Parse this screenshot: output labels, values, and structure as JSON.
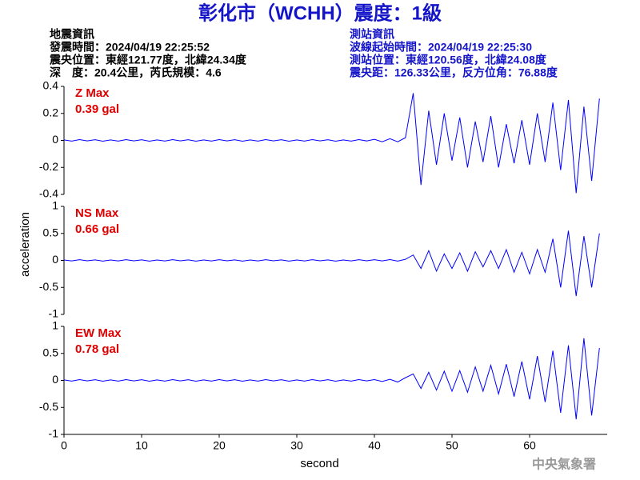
{
  "header": {
    "title": "彰化市（WCHH）震度：1級",
    "left_info": [
      "地震資訊",
      "發震時間：2024/04/19 22:25:52",
      "震央位置：東經121.77度，北緯24.34度",
      "深　度：20.4公里，芮氏規模：4.6"
    ],
    "right_info": [
      "測站資訊",
      "波線起始時間：2024/04/19 22:25:30",
      "測站位置：東經120.56度，北緯24.08度",
      "震央距：126.33公里，反方位角：76.88度"
    ],
    "watermark": "中央氣象署"
  },
  "chart_data": [
    {
      "type": "line",
      "annotations": [
        "Z Max",
        "0.39 gal"
      ],
      "annotation_color": "#e00000",
      "x": [
        0,
        1,
        2,
        3,
        4,
        5,
        6,
        7,
        8,
        9,
        10,
        11,
        12,
        13,
        14,
        15,
        16,
        17,
        18,
        19,
        20,
        21,
        22,
        23,
        24,
        25,
        26,
        27,
        28,
        29,
        30,
        31,
        32,
        33,
        34,
        35,
        36,
        37,
        38,
        39,
        40,
        41,
        42,
        43,
        44,
        45,
        46,
        47,
        48,
        49,
        50,
        51,
        52,
        53,
        54,
        55,
        56,
        57,
        58,
        59,
        60,
        61,
        62,
        63,
        64,
        65,
        66,
        67,
        68,
        69
      ],
      "series": [
        {
          "color": "#0000ff",
          "values": [
            0.004,
            -0.005,
            0.006,
            -0.004,
            0.005,
            -0.006,
            0.004,
            -0.005,
            0.006,
            -0.004,
            0.005,
            -0.006,
            0.004,
            -0.005,
            0.006,
            -0.004,
            0.005,
            -0.006,
            0.004,
            -0.005,
            0.006,
            -0.004,
            0.005,
            -0.006,
            0.004,
            -0.005,
            0.006,
            -0.004,
            0.005,
            -0.006,
            0.004,
            -0.005,
            0.006,
            -0.004,
            0.005,
            -0.006,
            0.004,
            -0.005,
            0.006,
            -0.004,
            0.008,
            -0.01,
            0.012,
            -0.01,
            0.02,
            0.35,
            -0.33,
            0.22,
            -0.18,
            0.2,
            -0.15,
            0.17,
            -0.2,
            0.14,
            -0.16,
            0.18,
            -0.2,
            0.12,
            -0.17,
            0.15,
            -0.18,
            0.2,
            -0.16,
            0.28,
            -0.22,
            0.3,
            -0.39,
            0.25,
            -0.3,
            0.31
          ]
        }
      ],
      "xlim": [
        0,
        70
      ],
      "ylim": [
        -0.4,
        0.4
      ],
      "yticks": [
        0.4,
        0.2,
        0,
        -0.2,
        -0.4
      ]
    },
    {
      "type": "line",
      "annotations": [
        "NS Max",
        "0.66 gal"
      ],
      "annotation_color": "#e00000",
      "y_label": "acceleration",
      "x": [
        0,
        1,
        2,
        3,
        4,
        5,
        6,
        7,
        8,
        9,
        10,
        11,
        12,
        13,
        14,
        15,
        16,
        17,
        18,
        19,
        20,
        21,
        22,
        23,
        24,
        25,
        26,
        27,
        28,
        29,
        30,
        31,
        32,
        33,
        34,
        35,
        36,
        37,
        38,
        39,
        40,
        41,
        42,
        43,
        44,
        45,
        46,
        47,
        48,
        49,
        50,
        51,
        52,
        53,
        54,
        55,
        56,
        57,
        58,
        59,
        60,
        61,
        62,
        63,
        64,
        65,
        66,
        67,
        68,
        69
      ],
      "series": [
        {
          "color": "#0000ff",
          "values": [
            0.008,
            -0.01,
            0.012,
            -0.008,
            0.01,
            -0.012,
            0.008,
            -0.01,
            0.012,
            -0.008,
            0.01,
            -0.012,
            0.008,
            -0.01,
            0.012,
            -0.008,
            0.01,
            -0.012,
            0.008,
            -0.01,
            0.012,
            -0.008,
            0.01,
            -0.012,
            0.008,
            -0.01,
            0.012,
            -0.008,
            0.01,
            -0.012,
            0.008,
            -0.01,
            0.012,
            -0.008,
            0.01,
            -0.012,
            0.008,
            -0.01,
            0.012,
            -0.008,
            0.012,
            -0.01,
            0.015,
            -0.012,
            0.02,
            0.1,
            -0.15,
            0.18,
            -0.2,
            0.12,
            -0.15,
            0.14,
            -0.2,
            0.16,
            -0.12,
            0.18,
            -0.15,
            0.2,
            -0.22,
            0.15,
            -0.25,
            0.2,
            -0.22,
            0.4,
            -0.5,
            0.55,
            -0.66,
            0.45,
            -0.5,
            0.5
          ]
        }
      ],
      "xlim": [
        0,
        70
      ],
      "ylim": [
        -1,
        1
      ],
      "yticks": [
        1,
        0.5,
        0,
        -0.5,
        -1
      ]
    },
    {
      "type": "line",
      "annotations": [
        "EW Max",
        "0.78 gal"
      ],
      "annotation_color": "#e00000",
      "x_label": "second",
      "x": [
        0,
        1,
        2,
        3,
        4,
        5,
        6,
        7,
        8,
        9,
        10,
        11,
        12,
        13,
        14,
        15,
        16,
        17,
        18,
        19,
        20,
        21,
        22,
        23,
        24,
        25,
        26,
        27,
        28,
        29,
        30,
        31,
        32,
        33,
        34,
        35,
        36,
        37,
        38,
        39,
        40,
        41,
        42,
        43,
        44,
        45,
        46,
        47,
        48,
        49,
        50,
        51,
        52,
        53,
        54,
        55,
        56,
        57,
        58,
        59,
        60,
        61,
        62,
        63,
        64,
        65,
        66,
        67,
        68,
        69
      ],
      "series": [
        {
          "color": "#0000ff",
          "values": [
            0.01,
            -0.012,
            0.014,
            -0.01,
            0.012,
            -0.014,
            0.01,
            -0.012,
            0.014,
            -0.01,
            0.012,
            -0.014,
            0.01,
            -0.012,
            0.014,
            -0.01,
            0.012,
            -0.014,
            0.01,
            -0.012,
            0.014,
            -0.01,
            0.012,
            -0.014,
            0.01,
            -0.012,
            0.014,
            -0.01,
            0.012,
            -0.014,
            0.01,
            -0.012,
            0.014,
            -0.01,
            0.012,
            -0.014,
            0.01,
            -0.012,
            0.014,
            -0.01,
            0.015,
            -0.02,
            0.02,
            -0.03,
            0.05,
            0.12,
            -0.15,
            0.15,
            -0.18,
            0.17,
            -0.2,
            0.18,
            -0.22,
            0.25,
            -0.2,
            0.28,
            -0.25,
            0.3,
            -0.3,
            0.35,
            -0.35,
            0.45,
            -0.4,
            0.55,
            -0.6,
            0.65,
            -0.72,
            0.78,
            -0.65,
            0.6
          ]
        }
      ],
      "xlim": [
        0,
        70
      ],
      "ylim": [
        -1,
        1
      ],
      "yticks": [
        1,
        0.5,
        0,
        -0.5,
        -1
      ],
      "xticks": [
        0,
        10,
        20,
        30,
        40,
        50,
        60
      ]
    }
  ]
}
